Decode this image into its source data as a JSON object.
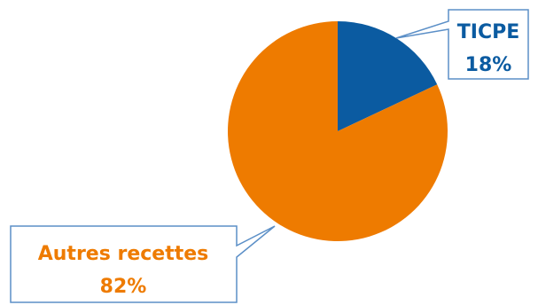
{
  "chart_data": {
    "type": "pie",
    "start_angle_deg": 0,
    "direction": "clockwise",
    "slices": [
      {
        "label": "TICPE",
        "value": 18,
        "value_label": "18%",
        "color": "#0b5ba1"
      },
      {
        "label": "Autres recettes",
        "value": 82,
        "value_label": "82%",
        "color": "#ee7b00"
      }
    ],
    "legend": "none",
    "data_labels": "callouts"
  }
}
